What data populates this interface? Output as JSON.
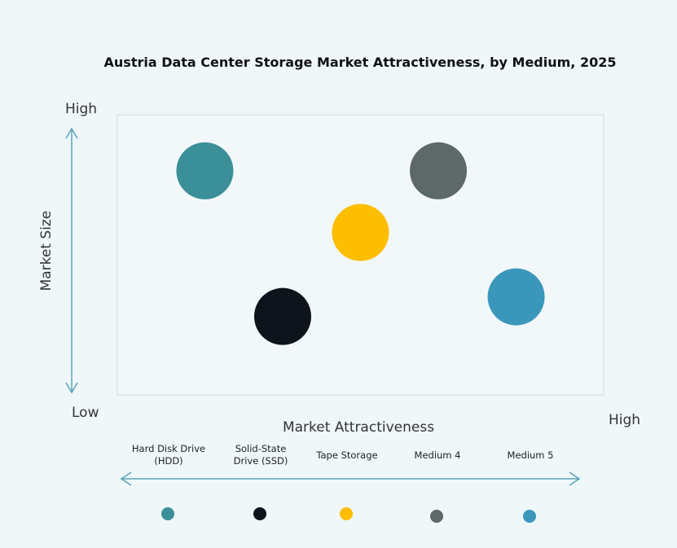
{
  "chart_data": {
    "type": "scatter",
    "title": "Austria Data Center Storage Market Attractiveness,  by Medium, 2025",
    "xlabel": "Market Attractiveness",
    "ylabel": "Market Size",
    "x_low_label": "Low",
    "x_high_label": "High",
    "y_high_label": "High",
    "xlim": [
      0,
      100
    ],
    "ylim": [
      0,
      100
    ],
    "grid": false,
    "legend_placement": "bottom",
    "series": [
      {
        "name": "Hard Disk Drive (HDD)",
        "label_lines": [
          "Hard Disk Drive",
          "(HDD)"
        ],
        "x": 18,
        "y": 80,
        "color": "#3a8f98"
      },
      {
        "name": "Solid-State Drive (SSD)",
        "label_lines": [
          "Solid-State",
          "Drive (SSD)"
        ],
        "x": 34,
        "y": 28,
        "color": "#0f141c"
      },
      {
        "name": "Tape Storage",
        "label_lines": [
          "Tape Storage"
        ],
        "x": 50,
        "y": 58,
        "color": "#fdbd00"
      },
      {
        "name": "Medium 4",
        "label_lines": [
          "Medium 4"
        ],
        "x": 66,
        "y": 80,
        "color": "#5d6868"
      },
      {
        "name": "Medium 5",
        "label_lines": [
          "Medium 5"
        ],
        "x": 82,
        "y": 35,
        "color": "#3a97bb"
      }
    ]
  }
}
